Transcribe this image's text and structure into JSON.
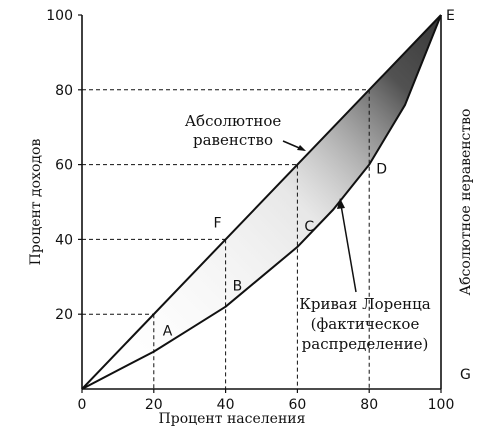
{
  "chart_data": {
    "type": "line",
    "xlabel": "Процент населения",
    "ylabel": "Процент доходов",
    "right_label": "Абсолютное неравенство",
    "xlim": [
      0,
      100
    ],
    "ylim": [
      0,
      100
    ],
    "x_ticks": [
      "0",
      "20",
      "40",
      "60",
      "80",
      "100"
    ],
    "y_ticks": [
      "20",
      "40",
      "60",
      "80",
      "100"
    ],
    "series": [
      {
        "name": "Абсолютное равенство",
        "points": [
          [
            0,
            0
          ],
          [
            100,
            100
          ]
        ]
      },
      {
        "name": "Кривая Лоренца (фактическое распределение)",
        "points": [
          [
            0,
            0
          ],
          [
            10,
            5
          ],
          [
            20,
            10
          ],
          [
            30,
            16
          ],
          [
            40,
            22
          ],
          [
            50,
            30
          ],
          [
            60,
            38
          ],
          [
            70,
            48
          ],
          [
            80,
            60
          ],
          [
            90,
            76
          ],
          [
            100,
            100
          ]
        ]
      }
    ],
    "annotations": {
      "equality": [
        "Абсолютное",
        "равенство"
      ],
      "lorenz": [
        "Кривая Лоренца",
        "(фактическое",
        "распределение)"
      ]
    },
    "points": [
      {
        "label": "A",
        "x": 20,
        "y": 10
      },
      {
        "label": "B",
        "x": 40,
        "y": 22
      },
      {
        "label": "C",
        "x": 60,
        "y": 38
      },
      {
        "label": "D",
        "x": 80,
        "y": 60
      },
      {
        "label": "E",
        "x": 100,
        "y": 100
      },
      {
        "label": "F",
        "x": 40,
        "y": 40
      },
      {
        "label": "G",
        "x": 100,
        "y": 0
      }
    ],
    "guides": [
      {
        "x": 20,
        "y": 20
      },
      {
        "x": 40,
        "y": 40
      },
      {
        "x": 60,
        "y": 60
      },
      {
        "x": 80,
        "y": 80
      }
    ],
    "colors": {
      "ink": "#111111",
      "shade": "#555555"
    }
  }
}
